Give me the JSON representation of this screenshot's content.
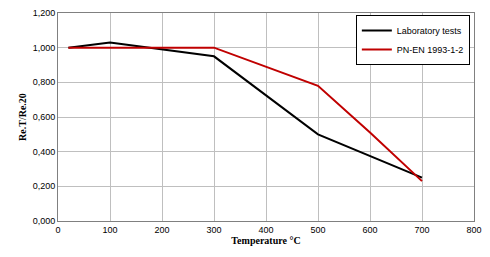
{
  "chart_data": {
    "type": "line",
    "x_label": "Temperature °C",
    "y_label": "Re.T/Re.20",
    "series": [
      {
        "name": "Laboratory tests",
        "color": "#000000",
        "x": [
          20,
          100,
          300,
          500,
          700
        ],
        "values": [
          1.0,
          1.03,
          0.95,
          0.5,
          0.25
        ]
      },
      {
        "name": "PN-EN 1993-1-2",
        "color": "#c00000",
        "x": [
          20,
          300,
          500,
          600,
          700
        ],
        "values": [
          1.0,
          1.0,
          0.78,
          0.51,
          0.23
        ]
      }
    ],
    "xlim": [
      0,
      800
    ],
    "xticks": [
      0,
      100,
      200,
      300,
      400,
      500,
      600,
      700,
      800
    ],
    "ylim": [
      0,
      1.2
    ],
    "yticks": [
      {
        "value": 0,
        "label": "0,000"
      },
      {
        "value": 0.2,
        "label": "0,200"
      },
      {
        "value": 0.4,
        "label": "0,400"
      },
      {
        "value": 0.6,
        "label": "0,600"
      },
      {
        "value": 0.8,
        "label": "0,800"
      },
      {
        "value": 1.0,
        "label": "1,000"
      },
      {
        "value": 1.2,
        "label": "1,200"
      }
    ],
    "grid": true,
    "legend": "top right"
  }
}
